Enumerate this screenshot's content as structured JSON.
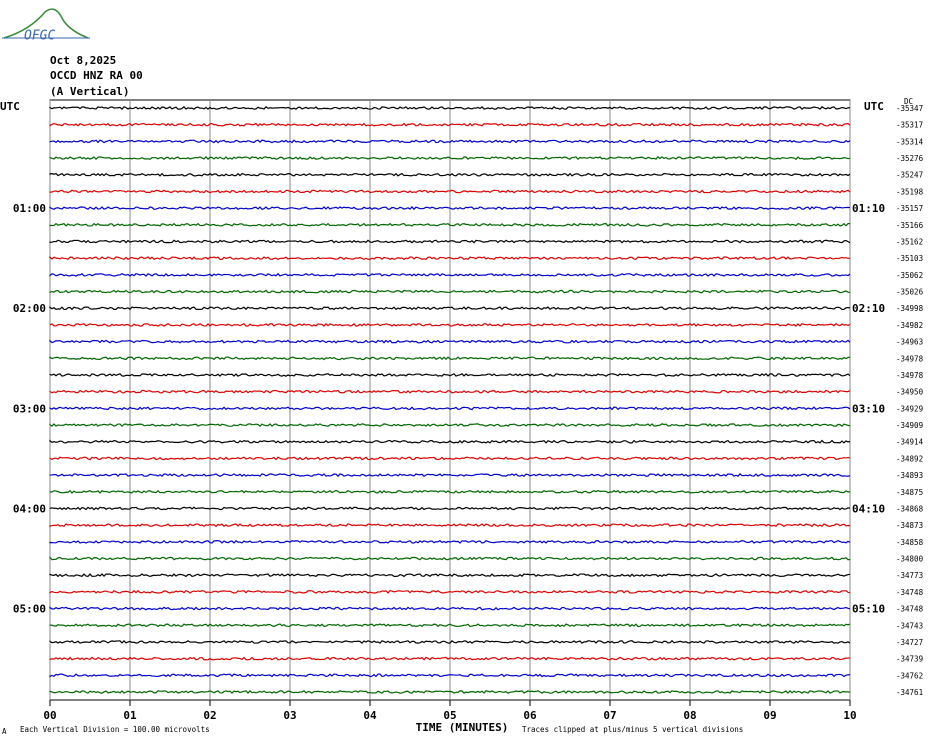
{
  "logo": "OFGC",
  "header": {
    "date": "Oct 8,2025",
    "station": "OCCD HNZ RA 00",
    "component": "(A Vertical)"
  },
  "left_axis": {
    "title": "UTC",
    "labels": [
      "01:00",
      "02:00",
      "03:00",
      "04:00",
      "05:00"
    ]
  },
  "right_axis": {
    "title": "UTC",
    "labels": [
      "01:10",
      "02:10",
      "03:10",
      "04:10",
      "05:10"
    ],
    "dc_label": "DC",
    "offsets": [
      "-35347",
      "-35317",
      "-35314",
      "-35276",
      "-35247",
      "-35198",
      "-35157",
      "-35166",
      "-35162",
      "-35103",
      "-35062",
      "-35026",
      "-34998",
      "-34982",
      "-34963",
      "-34978",
      "-34978",
      "-34950",
      "-34929",
      "-34909",
      "-34914",
      "-34892",
      "-34893",
      "-34875",
      "-34868",
      "-34873",
      "-34858",
      "-34800",
      "-34773",
      "-34748",
      "-34748",
      "-34743",
      "-34727",
      "-34739",
      "-34762",
      "-34761"
    ]
  },
  "x_axis": {
    "title": "TIME (MINUTES)",
    "ticks": [
      "00",
      "01",
      "02",
      "03",
      "04",
      "05",
      "06",
      "07",
      "08",
      "09",
      "10"
    ]
  },
  "footer": {
    "scale_note": "Each Vertical Division =  100.00 microvolts",
    "clip_note": "Traces clipped at plus/minus 5 vertical divisions"
  }
}
